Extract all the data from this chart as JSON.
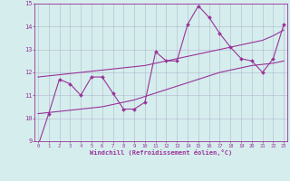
{
  "x": [
    0,
    1,
    2,
    3,
    4,
    5,
    6,
    7,
    8,
    9,
    10,
    11,
    12,
    13,
    14,
    15,
    16,
    17,
    18,
    19,
    20,
    21,
    22,
    23
  ],
  "y_main": [
    8.8,
    10.2,
    11.7,
    11.5,
    11.0,
    11.8,
    11.8,
    11.1,
    10.4,
    10.4,
    10.7,
    12.9,
    12.5,
    12.5,
    14.1,
    14.9,
    14.4,
    13.7,
    13.1,
    12.6,
    12.5,
    12.0,
    12.6,
    14.1
  ],
  "y_trend_upper": [
    11.8,
    11.85,
    11.9,
    11.95,
    12.0,
    12.05,
    12.1,
    12.15,
    12.2,
    12.25,
    12.3,
    12.4,
    12.5,
    12.6,
    12.7,
    12.8,
    12.9,
    13.0,
    13.1,
    13.2,
    13.3,
    13.4,
    13.6,
    13.85
  ],
  "y_trend_lower": [
    10.2,
    10.25,
    10.3,
    10.35,
    10.4,
    10.45,
    10.5,
    10.6,
    10.7,
    10.8,
    10.95,
    11.1,
    11.25,
    11.4,
    11.55,
    11.7,
    11.85,
    12.0,
    12.1,
    12.2,
    12.3,
    12.35,
    12.4,
    12.5
  ],
  "line_color": "#993399",
  "bg_color": "#d5eded",
  "grid_color": "#b0b8cc",
  "xlabel": "Windchill (Refroidissement éolien,°C)",
  "ylim": [
    9,
    15
  ],
  "xlim": [
    0,
    23
  ],
  "yticks": [
    9,
    10,
    11,
    12,
    13,
    14,
    15
  ],
  "xticks": [
    0,
    1,
    2,
    3,
    4,
    5,
    6,
    7,
    8,
    9,
    10,
    11,
    12,
    13,
    14,
    15,
    16,
    17,
    18,
    19,
    20,
    21,
    22,
    23
  ]
}
